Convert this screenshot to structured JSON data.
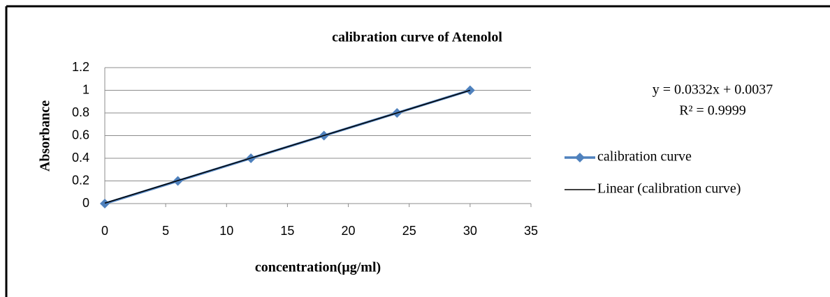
{
  "chart_data": {
    "type": "line",
    "title": "calibration curve of Atenolol",
    "x_label": "concentration(µg/ml)",
    "y_label": "Absorbance",
    "x": [
      0,
      6,
      12,
      18,
      24,
      30
    ],
    "series": [
      {
        "name": "calibration curve",
        "color": "#4f81bd",
        "values": [
          0,
          0.2,
          0.4,
          0.6,
          0.8,
          1.0
        ],
        "marker": "diamond"
      },
      {
        "name": "Linear (calibration curve)",
        "color": "#000000",
        "values": [
          0.004,
          0.203,
          0.402,
          0.601,
          0.8,
          1.0
        ]
      }
    ],
    "annotations": [
      "y = 0.0332x + 0.0037",
      "R² = 0.9999"
    ],
    "xlim": [
      0,
      35
    ],
    "xticks": [
      0,
      5,
      10,
      15,
      20,
      25,
      30,
      35
    ],
    "ylim": [
      0,
      1.2
    ],
    "yticks": [
      0,
      0.2,
      0.4,
      0.6,
      0.8,
      1,
      1.2
    ],
    "grid": true,
    "legend": "right"
  }
}
